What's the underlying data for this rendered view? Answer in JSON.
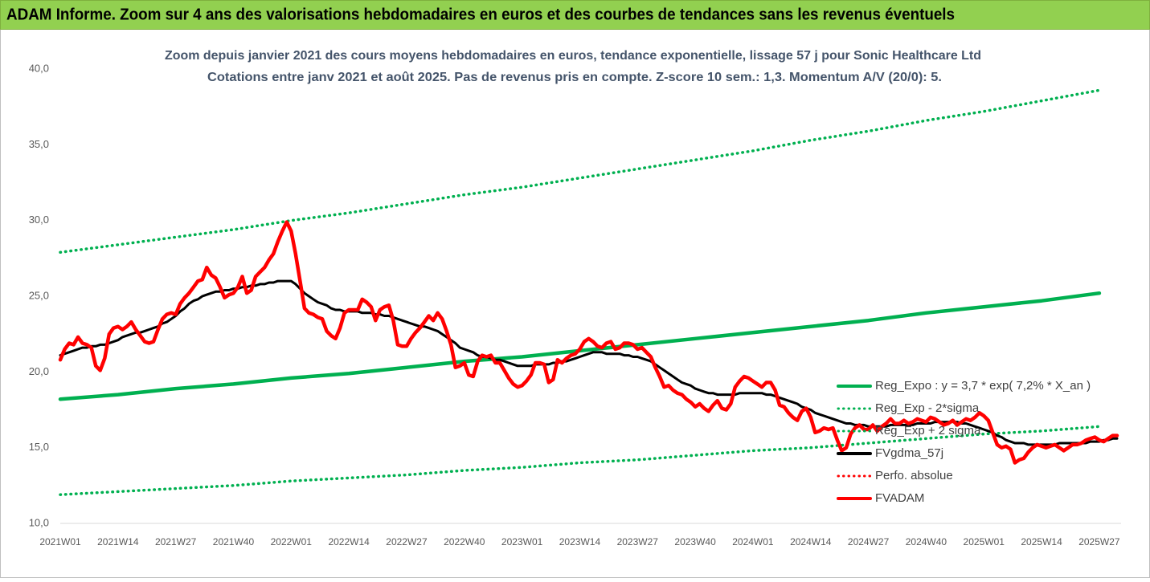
{
  "header": {
    "title": "ADAM Informe. Zoom sur 4 ans des valorisations hebdomadaires en euros et des courbes de tendances sans les revenus éventuels"
  },
  "chart_data": {
    "type": "line",
    "title": "Zoom depuis janvier 2021 des cours moyens hebdomadaires en euros, tendance exponentielle, lissage 57 j pour Sonic Healthcare Ltd",
    "subtitle": "Cotations entre janv 2021 et août 2025.  Pas de revenus pris en compte. Z-score 10 sem.: 1,3. Momentum A/V (20/0): 5.",
    "categories": [
      "2021W01",
      null,
      null,
      null,
      null,
      null,
      null,
      null,
      null,
      null,
      null,
      null,
      null,
      "2021W14",
      null,
      null,
      null,
      null,
      null,
      null,
      null,
      null,
      null,
      null,
      null,
      null,
      "2021W27",
      null,
      null,
      null,
      null,
      null,
      null,
      null,
      null,
      null,
      null,
      null,
      null,
      "2021W40",
      null,
      null,
      null,
      null,
      null,
      null,
      null,
      null,
      null,
      null,
      null,
      null,
      "2022W01",
      null,
      null,
      null,
      null,
      null,
      null,
      null,
      null,
      null,
      null,
      null,
      null,
      "2022W14",
      null,
      null,
      null,
      null,
      null,
      null,
      null,
      null,
      null,
      null,
      null,
      null,
      "2022W27",
      null,
      null,
      null,
      null,
      null,
      null,
      null,
      null,
      null,
      null,
      null,
      null,
      "2022W40",
      null,
      null,
      null,
      null,
      null,
      null,
      null,
      null,
      null,
      null,
      null,
      null,
      "2023W01",
      null,
      null,
      null,
      null,
      null,
      null,
      null,
      null,
      null,
      null,
      null,
      null,
      "2023W14",
      null,
      null,
      null,
      null,
      null,
      null,
      null,
      null,
      null,
      null,
      null,
      null,
      "2023W27",
      null,
      null,
      null,
      null,
      null,
      null,
      null,
      null,
      null,
      null,
      null,
      null,
      "2023W40",
      null,
      null,
      null,
      null,
      null,
      null,
      null,
      null,
      null,
      null,
      null,
      null,
      "2024W01",
      null,
      null,
      null,
      null,
      null,
      null,
      null,
      null,
      null,
      null,
      null,
      null,
      "2024W14",
      null,
      null,
      null,
      null,
      null,
      null,
      null,
      null,
      null,
      null,
      null,
      null,
      "2024W27",
      null,
      null,
      null,
      null,
      null,
      null,
      null,
      null,
      null,
      null,
      null,
      null,
      "2024W40",
      null,
      null,
      null,
      null,
      null,
      null,
      null,
      null,
      null,
      null,
      null,
      null,
      "2025W01",
      null,
      null,
      null,
      null,
      null,
      null,
      null,
      null,
      null,
      null,
      null,
      null,
      "2025W14",
      null,
      null,
      null,
      null,
      null,
      null,
      null,
      null,
      null,
      null,
      null,
      null,
      "2025W27",
      null,
      null,
      null,
      null
    ],
    "ylim": [
      10,
      40
    ],
    "yticks": [
      {
        "value": 10,
        "label": "10,0"
      },
      {
        "value": 15,
        "label": "15,0"
      },
      {
        "value": 20,
        "label": "20,0"
      },
      {
        "value": 25,
        "label": "25,0"
      },
      {
        "value": 30,
        "label": "30,0"
      },
      {
        "value": 35,
        "label": "35,0"
      },
      {
        "value": 40,
        "label": "40,0"
      }
    ],
    "grid": false,
    "legend": "right",
    "series": [
      {
        "name": "Reg_Expo : y = 3,7 * exp( 7,2% *  X_an )",
        "color": "#00b050",
        "style": "solid",
        "x": [
          "2021W01",
          "2021W14",
          "2021W27",
          "2021W40",
          "2022W01",
          "2022W14",
          "2022W27",
          "2022W40",
          "2023W01",
          "2023W14",
          "2023W27",
          "2023W40",
          "2024W01",
          "2024W14",
          "2024W27",
          "2024W40",
          "2025W01",
          "2025W14",
          "2025W27"
        ],
        "values": [
          18.2,
          18.5,
          18.9,
          19.2,
          19.6,
          19.9,
          20.3,
          20.7,
          21.0,
          21.4,
          21.8,
          22.2,
          22.6,
          23.0,
          23.4,
          23.9,
          24.3,
          24.7,
          25.2
        ]
      },
      {
        "name": "Reg_Exp - 2*sigma",
        "color": "#00b050",
        "style": "dotted",
        "x": [
          "2021W01",
          "2021W14",
          "2021W27",
          "2021W40",
          "2022W01",
          "2022W14",
          "2022W27",
          "2022W40",
          "2023W01",
          "2023W14",
          "2023W27",
          "2023W40",
          "2024W01",
          "2024W14",
          "2024W27",
          "2024W40",
          "2025W01",
          "2025W14",
          "2025W27"
        ],
        "values": [
          11.9,
          12.1,
          12.3,
          12.5,
          12.8,
          13.0,
          13.2,
          13.5,
          13.7,
          14.0,
          14.2,
          14.5,
          14.8,
          15.0,
          15.3,
          15.6,
          15.9,
          16.1,
          16.4
        ]
      },
      {
        "name": "Reg_Exp + 2 sigma",
        "color": "#00b050",
        "style": "dotted",
        "x": [
          "2021W01",
          "2021W14",
          "2021W27",
          "2021W40",
          "2022W01",
          "2022W14",
          "2022W27",
          "2022W40",
          "2023W01",
          "2023W14",
          "2023W27",
          "2023W40",
          "2024W01",
          "2024W14",
          "2024W27",
          "2024W40",
          "2025W01",
          "2025W14",
          "2025W27"
        ],
        "values": [
          27.9,
          28.4,
          28.9,
          29.4,
          30.0,
          30.5,
          31.1,
          31.7,
          32.2,
          32.8,
          33.4,
          34.0,
          34.6,
          35.3,
          35.9,
          36.6,
          37.2,
          37.9,
          38.6
        ]
      },
      {
        "name": "FVgdma_57j",
        "color": "#000000",
        "style": "solid",
        "values": [
          21.1,
          21.2,
          21.3,
          21.4,
          21.5,
          21.6,
          21.6,
          21.7,
          21.7,
          21.8,
          21.8,
          21.9,
          22.0,
          22.1,
          22.3,
          22.4,
          22.5,
          22.6,
          22.6,
          22.7,
          22.8,
          22.9,
          23.0,
          23.2,
          23.3,
          23.5,
          23.7,
          24.0,
          24.2,
          24.5,
          24.7,
          24.8,
          25.0,
          25.1,
          25.2,
          25.3,
          25.3,
          25.4,
          25.4,
          25.5,
          25.5,
          25.6,
          25.6,
          25.7,
          25.7,
          25.8,
          25.8,
          25.9,
          25.9,
          26.0,
          26.0,
          26.0,
          26.0,
          25.8,
          25.5,
          25.2,
          25.0,
          24.8,
          24.6,
          24.5,
          24.4,
          24.2,
          24.1,
          24.1,
          24.0,
          24.0,
          24.0,
          24.0,
          23.9,
          23.9,
          23.9,
          23.8,
          23.8,
          23.7,
          23.7,
          23.6,
          23.5,
          23.4,
          23.3,
          23.2,
          23.1,
          23.0,
          23.0,
          22.9,
          22.8,
          22.7,
          22.5,
          22.3,
          22.1,
          21.9,
          21.6,
          21.5,
          21.4,
          21.3,
          21.1,
          21.0,
          21.0,
          20.9,
          20.8,
          20.8,
          20.7,
          20.6,
          20.5,
          20.4,
          20.4,
          20.4,
          20.4,
          20.5,
          20.5,
          20.5,
          20.5,
          20.6,
          20.6,
          20.7,
          20.7,
          20.8,
          20.9,
          21.0,
          21.1,
          21.2,
          21.3,
          21.3,
          21.3,
          21.2,
          21.2,
          21.2,
          21.2,
          21.1,
          21.1,
          21.0,
          21.0,
          20.9,
          20.8,
          20.7,
          20.5,
          20.3,
          20.1,
          19.9,
          19.7,
          19.5,
          19.3,
          19.2,
          19.1,
          18.9,
          18.8,
          18.7,
          18.6,
          18.6,
          18.5,
          18.5,
          18.5,
          18.5,
          18.5,
          18.6,
          18.6,
          18.6,
          18.6,
          18.6,
          18.6,
          18.5,
          18.5,
          18.4,
          18.3,
          18.2,
          18.1,
          18.0,
          17.9,
          17.7,
          17.6,
          17.5,
          17.3,
          17.2,
          17.1,
          17.0,
          16.9,
          16.8,
          16.7,
          16.6,
          16.6,
          16.5,
          16.5,
          16.5,
          16.4,
          16.4,
          16.4,
          16.4,
          16.4,
          16.5,
          16.5,
          16.5,
          16.5,
          16.5,
          16.5,
          16.6,
          16.6,
          16.6,
          16.6,
          16.7,
          16.7,
          16.7,
          16.7,
          16.7,
          16.7,
          16.6,
          16.6,
          16.5,
          16.4,
          16.3,
          16.2,
          16.1,
          16.0,
          15.8,
          15.7,
          15.5,
          15.4,
          15.3,
          15.3,
          15.3,
          15.2,
          15.2,
          15.2,
          15.2,
          15.2,
          15.2,
          15.2,
          15.3,
          15.3,
          15.3,
          15.3,
          15.3,
          15.3,
          15.3,
          15.4,
          15.4,
          15.4,
          15.5,
          15.5,
          15.6,
          15.6
        ]
      },
      {
        "name": "Perfo. absolue",
        "color": "#ff0000",
        "style": "dotted",
        "x": [],
        "values": []
      },
      {
        "name": "FVADAM",
        "color": "#ff0000",
        "style": "solid",
        "values": [
          20.8,
          21.5,
          21.9,
          21.8,
          22.3,
          21.9,
          21.8,
          21.6,
          20.4,
          20.1,
          20.9,
          22.5,
          22.9,
          23.0,
          22.8,
          23.0,
          23.3,
          22.8,
          22.4,
          22.0,
          21.9,
          22.0,
          22.8,
          23.5,
          23.8,
          23.9,
          23.8,
          24.5,
          24.9,
          25.2,
          25.6,
          26.0,
          26.1,
          26.9,
          26.4,
          26.2,
          25.6,
          24.9,
          25.1,
          25.2,
          25.6,
          26.3,
          25.2,
          25.4,
          26.3,
          26.6,
          26.9,
          27.4,
          27.8,
          28.6,
          29.3,
          29.9,
          29.3,
          27.8,
          26.0,
          24.2,
          23.9,
          23.8,
          23.6,
          23.5,
          22.7,
          22.4,
          22.2,
          22.9,
          23.9,
          24.1,
          24.1,
          24.1,
          24.8,
          24.6,
          24.3,
          23.4,
          24.1,
          24.3,
          24.4,
          23.4,
          21.8,
          21.7,
          21.7,
          22.2,
          22.6,
          22.9,
          23.3,
          23.7,
          23.4,
          23.9,
          23.5,
          22.7,
          21.8,
          20.3,
          20.4,
          20.6,
          19.8,
          19.7,
          20.7,
          21.1,
          21.0,
          21.1,
          20.6,
          20.6,
          20.1,
          19.6,
          19.2,
          19.0,
          19.1,
          19.4,
          19.8,
          20.6,
          20.6,
          20.5,
          19.3,
          19.5,
          20.8,
          20.6,
          20.9,
          21.1,
          21.2,
          21.5,
          22.0,
          22.2,
          22.0,
          21.7,
          21.6,
          21.9,
          22.0,
          21.5,
          21.6,
          21.9,
          21.9,
          21.8,
          21.5,
          21.6,
          21.3,
          21.0,
          20.3,
          19.7,
          19.0,
          19.1,
          18.8,
          18.6,
          18.5,
          18.2,
          18.0,
          17.7,
          17.9,
          17.6,
          17.4,
          17.8,
          18.1,
          17.6,
          17.5,
          17.9,
          19.0,
          19.4,
          19.7,
          19.6,
          19.4,
          19.2,
          19.0,
          19.3,
          19.3,
          18.8,
          17.8,
          17.7,
          17.3,
          17.0,
          16.8,
          17.4,
          17.6,
          17.0,
          16.0,
          16.1,
          16.3,
          16.2,
          16.3,
          15.5,
          14.8,
          15.0,
          15.9,
          16.3,
          16.5,
          16.2,
          16.2,
          16.5,
          16.1,
          16.4,
          16.6,
          16.9,
          16.6,
          16.6,
          16.8,
          16.6,
          16.7,
          16.9,
          16.8,
          16.7,
          17.0,
          16.9,
          16.7,
          16.5,
          16.6,
          16.8,
          16.5,
          16.7,
          16.9,
          16.8,
          17.0,
          17.3,
          17.1,
          16.8,
          16.0,
          15.2,
          15.0,
          15.1,
          14.9,
          14.0,
          14.2,
          14.3,
          14.7,
          15.0,
          15.2,
          15.1,
          15.0,
          15.1,
          15.2,
          15.0,
          14.8,
          15.0,
          15.2,
          15.2,
          15.3,
          15.5,
          15.6,
          15.7,
          15.5,
          15.4,
          15.6,
          15.8,
          15.8
        ]
      }
    ]
  }
}
